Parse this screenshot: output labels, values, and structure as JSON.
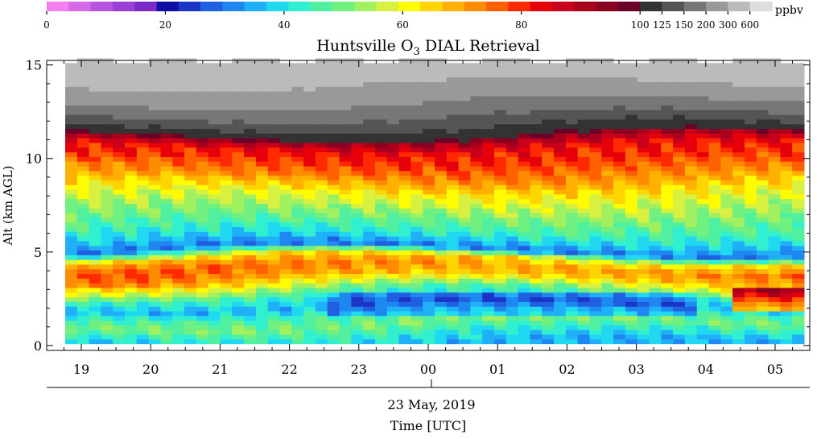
{
  "chart_data": {
    "type": "heatmap",
    "title_main": "Huntsville O",
    "title_sub": "3",
    "title_rest": " DIAL Retrieval",
    "ylabel": "Alt (km AGL)",
    "date_label": "23 May, 2019",
    "xlabel": "Time [UTC]",
    "ylim": [
      0,
      15.5
    ],
    "y_ticks": [
      "0",
      "5",
      "10",
      "15"
    ],
    "x_ticks": [
      "19",
      "20",
      "21",
      "22",
      "23",
      "00",
      "01",
      "02",
      "03",
      "04",
      "05"
    ],
    "colorbar": {
      "unit": "ppbv",
      "tick_labels": [
        "0",
        "20",
        "40",
        "60",
        "80",
        "100",
        "125",
        "150",
        "200",
        "300",
        "600"
      ],
      "colors": [
        "#f57ff0",
        "#d56ae8",
        "#b755e0",
        "#9a40d8",
        "#7d2bc8",
        "#0f0fa8",
        "#1a35c8",
        "#1f5fe0",
        "#1f88f0",
        "#20b0f8",
        "#20d8f0",
        "#30f0d0",
        "#50f0a0",
        "#70f080",
        "#a0f060",
        "#d8f040",
        "#fffb00",
        "#ffd500",
        "#ffb000",
        "#ff8c00",
        "#ff6000",
        "#ff2a00",
        "#e6000a",
        "#c8001c",
        "#a8001c",
        "#8a0020",
        "#6a0028",
        "#333333",
        "#555555",
        "#777777",
        "#999999",
        "#bbbbbb",
        "#dddddd"
      ]
    },
    "altitude_profile_ppbv": [
      {
        "alt": 0.0,
        "v": 36
      },
      {
        "alt": 0.5,
        "v": 42
      },
      {
        "alt": 1.0,
        "v": 50
      },
      {
        "alt": 1.5,
        "v": 46
      },
      {
        "alt": 2.0,
        "v": 36
      },
      {
        "alt": 2.5,
        "v": 44
      },
      {
        "alt": 3.0,
        "v": 58
      },
      {
        "alt": 3.5,
        "v": 70
      },
      {
        "alt": 4.0,
        "v": 74
      },
      {
        "alt": 4.5,
        "v": 64
      },
      {
        "alt": 5.0,
        "v": 30
      },
      {
        "alt": 5.5,
        "v": 38
      },
      {
        "alt": 6.0,
        "v": 44
      },
      {
        "alt": 6.5,
        "v": 48
      },
      {
        "alt": 7.0,
        "v": 52
      },
      {
        "alt": 7.5,
        "v": 56
      },
      {
        "alt": 8.0,
        "v": 60
      },
      {
        "alt": 8.5,
        "v": 66
      },
      {
        "alt": 9.0,
        "v": 72
      },
      {
        "alt": 9.5,
        "v": 76
      },
      {
        "alt": 10.0,
        "v": 80
      },
      {
        "alt": 10.5,
        "v": 82
      },
      {
        "alt": 11.0,
        "v": 92
      },
      {
        "alt": 11.5,
        "v": 120
      },
      {
        "alt": 12.0,
        "v": 140
      },
      {
        "alt": 12.5,
        "v": 170
      },
      {
        "alt": 13.0,
        "v": 210
      },
      {
        "alt": 13.5,
        "v": 260
      },
      {
        "alt": 14.0,
        "v": 320
      },
      {
        "alt": 14.5,
        "v": 400
      },
      {
        "alt": 15.0,
        "v": 480
      }
    ]
  }
}
